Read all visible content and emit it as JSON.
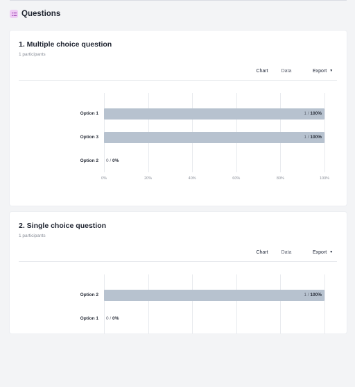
{
  "section": {
    "title": "Questions",
    "icon": "questions-icon"
  },
  "tabs": {
    "chart": "Chart",
    "data": "Data",
    "export": "Export"
  },
  "questions": [
    {
      "title": "1. Multiple choice question",
      "participants": "1 participants",
      "options": [
        {
          "label": "Option 1",
          "count": "1",
          "percent": "100%",
          "value": 100
        },
        {
          "label": "Option 3",
          "count": "1",
          "percent": "100%",
          "value": 100
        },
        {
          "label": "Option 2",
          "count": "0",
          "percent": "0%",
          "value": 0
        }
      ],
      "ticks": [
        "0%",
        "20%",
        "40%",
        "60%",
        "80%",
        "100%"
      ]
    },
    {
      "title": "2. Single choice question",
      "participants": "1 participants",
      "options": [
        {
          "label": "Option 2",
          "count": "1",
          "percent": "100%",
          "value": 100
        },
        {
          "label": "Option 1",
          "count": "0",
          "percent": "0%",
          "value": 0
        }
      ]
    }
  ],
  "chart_data": [
    {
      "type": "bar",
      "orientation": "horizontal",
      "categories": [
        "Option 1",
        "Option 3",
        "Option 2"
      ],
      "values": [
        100,
        100,
        0
      ],
      "counts": [
        1,
        1,
        0
      ],
      "xlim": [
        0,
        100
      ],
      "ticks": [
        "0%",
        "20%",
        "40%",
        "60%",
        "80%",
        "100%"
      ],
      "grid": true
    },
    {
      "type": "bar",
      "orientation": "horizontal",
      "categories": [
        "Option 2",
        "Option 1"
      ],
      "values": [
        100,
        0
      ],
      "counts": [
        1,
        0
      ],
      "xlim": [
        0,
        100
      ],
      "grid": true
    }
  ],
  "colors": {
    "bar": "#b7c2cf",
    "accent": "#7b6fd6",
    "background": "#f3f4f6"
  }
}
